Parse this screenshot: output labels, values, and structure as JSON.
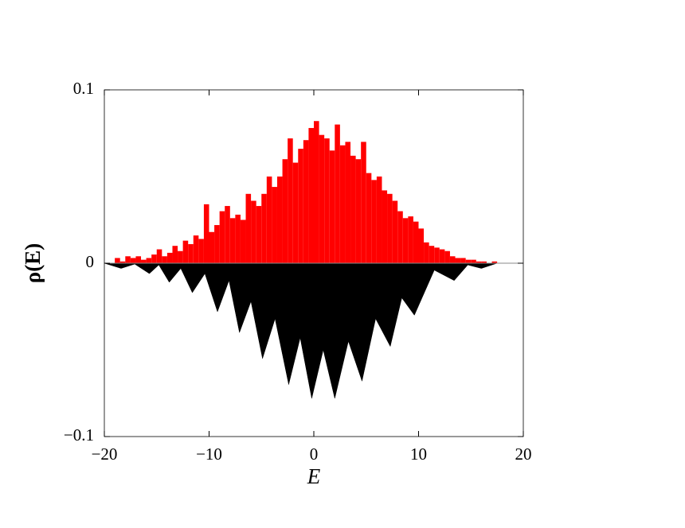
{
  "chart_data": [
    {
      "type": "histogram",
      "xlabel": "E",
      "ylabel": "ρ(E)",
      "color": "#ff0000",
      "bins": [
        -19.5,
        -19,
        -18.5,
        -18,
        -17.5,
        -17,
        -16.5,
        -16,
        -15.5,
        -15,
        -14.5,
        -14,
        -13.5,
        -13,
        -12.5,
        -12,
        -11.5,
        -11,
        -10.5,
        -10,
        -9.5,
        -9,
        -8.5,
        -8,
        -7.5,
        -7,
        -6.5,
        -6,
        -5.5,
        -5,
        -4.5,
        -4,
        -3.5,
        -3,
        -2.5,
        -2,
        -1.5,
        -1,
        -0.5,
        0,
        0.5,
        1,
        1.5,
        2,
        2.5,
        3,
        3.5,
        4,
        4.5,
        5,
        5.5,
        6,
        6.5,
        7,
        7.5,
        8,
        8.5,
        9,
        9.5,
        10,
        10.5,
        11,
        11.5,
        12,
        12.5,
        13,
        13.5,
        14,
        14.5,
        15,
        15.5,
        16,
        16.5,
        17,
        17.5,
        18
      ],
      "values": [
        0,
        0.003,
        0.001,
        0.004,
        0.003,
        0.004,
        0.002,
        0.003,
        0.005,
        0.008,
        0.004,
        0.006,
        0.01,
        0.007,
        0.013,
        0.011,
        0.016,
        0.014,
        0.034,
        0.018,
        0.022,
        0.03,
        0.033,
        0.026,
        0.028,
        0.025,
        0.04,
        0.036,
        0.033,
        0.04,
        0.05,
        0.044,
        0.05,
        0.06,
        0.072,
        0.058,
        0.066,
        0.071,
        0.078,
        0.082,
        0.074,
        0.072,
        0.065,
        0.08,
        0.068,
        0.07,
        0.062,
        0.06,
        0.07,
        0.052,
        0.048,
        0.05,
        0.042,
        0.04,
        0.036,
        0.03,
        0.026,
        0.027,
        0.024,
        0.02,
        0.012,
        0.01,
        0.009,
        0.008,
        0.007,
        0.004,
        0.003,
        0.003,
        0.002,
        0.002,
        0.001,
        0.001,
        0,
        0.001,
        0
      ],
      "xlim": [
        -20,
        20
      ],
      "ylim": [
        -0.1,
        0.1
      ],
      "xticks": [
        {
          "value": -20,
          "label": "−20"
        },
        {
          "value": -10,
          "label": "−10"
        },
        0,
        10,
        20
      ],
      "yticks": [
        {
          "value": -0.1,
          "label": "−0.1"
        },
        0,
        0.1
      ]
    },
    {
      "type": "area",
      "color": "#000000",
      "x": [
        -20,
        -18.4,
        -17.1,
        -15.7,
        -14.8,
        -13.8,
        -12.7,
        -11.6,
        -10.4,
        -9.2,
        -8.1,
        -7.1,
        -6.0,
        -4.9,
        -3.7,
        -2.4,
        -1.3,
        -0.2,
        0.9,
        2.0,
        3.3,
        4.6,
        5.9,
        7.3,
        8.4,
        9.6,
        11.5,
        13.4,
        14.7,
        16.0,
        17.5,
        20
      ],
      "values": [
        0,
        -0.003,
        -0.0005,
        -0.006,
        -0.001,
        -0.011,
        -0.003,
        -0.017,
        -0.006,
        -0.028,
        -0.01,
        -0.04,
        -0.022,
        -0.055,
        -0.032,
        -0.07,
        -0.043,
        -0.078,
        -0.05,
        -0.078,
        -0.045,
        -0.068,
        -0.032,
        -0.048,
        -0.02,
        -0.03,
        -0.004,
        -0.01,
        -0.001,
        -0.003,
        0,
        0
      ]
    }
  ]
}
